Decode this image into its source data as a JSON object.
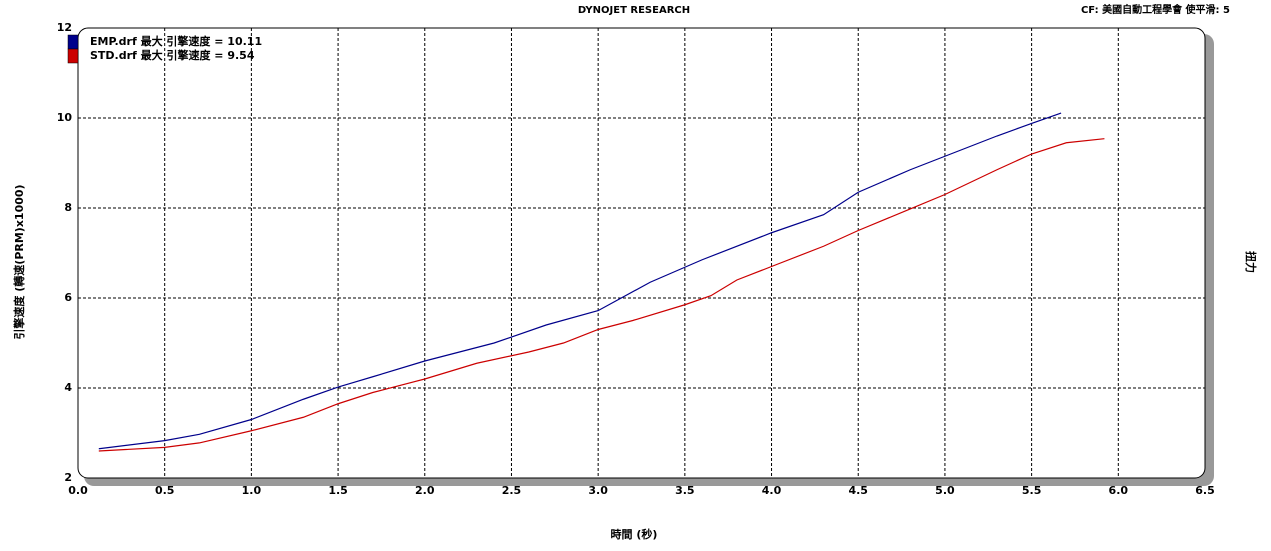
{
  "chart_data": {
    "type": "line",
    "title": "DYNOJET RESEARCH",
    "subtitle": "CF: 美國自動工程學會  使平滑: 5",
    "x_label": "時間 (秒)",
    "y_label": "引擎速度 (轉速(PRM)x1000)",
    "y2_label": "扭力",
    "xlim": [
      0,
      6.5
    ],
    "ylim": [
      2,
      12
    ],
    "xticks": [
      {
        "value": 0,
        "label": "0.0"
      },
      0.5,
      {
        "value": 1,
        "label": "1.0"
      },
      1.5,
      {
        "value": 2,
        "label": "2.0"
      },
      2.5,
      {
        "value": 3,
        "label": "3.0"
      },
      3.5,
      {
        "value": 4,
        "label": "4.0"
      },
      4.5,
      {
        "value": 5,
        "label": "5.0"
      },
      5.5,
      {
        "value": 6,
        "label": "6.0"
      },
      6.5
    ],
    "yticks": [
      2,
      4,
      6,
      8,
      10,
      12
    ],
    "grid": true,
    "legend": "top-left",
    "series": [
      {
        "name": "EMP.drf 最大 引擎速度 = 10.11",
        "color": "#00008b",
        "x": [
          0.12,
          0.5,
          0.7,
          1.0,
          1.3,
          1.5,
          1.7,
          2.0,
          2.4,
          2.7,
          3.0,
          3.3,
          3.6,
          4.0,
          4.3,
          4.5,
          4.8,
          5.0,
          5.3,
          5.5,
          5.67
        ],
        "values": [
          2.65,
          2.83,
          2.97,
          3.3,
          3.75,
          4.02,
          4.25,
          4.6,
          5.0,
          5.4,
          5.72,
          6.35,
          6.85,
          7.45,
          7.85,
          8.35,
          8.85,
          9.15,
          9.6,
          9.88,
          10.11
        ]
      },
      {
        "name": "STD.drf 最大 引擎速度 = 9.54",
        "color": "#cc0000",
        "x": [
          0.12,
          0.5,
          0.7,
          1.0,
          1.3,
          1.5,
          1.7,
          2.0,
          2.3,
          2.6,
          2.8,
          3.0,
          3.2,
          3.5,
          3.65,
          3.8,
          4.0,
          4.3,
          4.5,
          4.8,
          5.0,
          5.3,
          5.5,
          5.7,
          5.92
        ],
        "values": [
          2.6,
          2.68,
          2.78,
          3.05,
          3.35,
          3.65,
          3.9,
          4.2,
          4.55,
          4.8,
          5.0,
          5.3,
          5.5,
          5.85,
          6.05,
          6.4,
          6.7,
          7.15,
          7.5,
          7.98,
          8.3,
          8.85,
          9.2,
          9.45,
          9.54
        ]
      }
    ]
  }
}
